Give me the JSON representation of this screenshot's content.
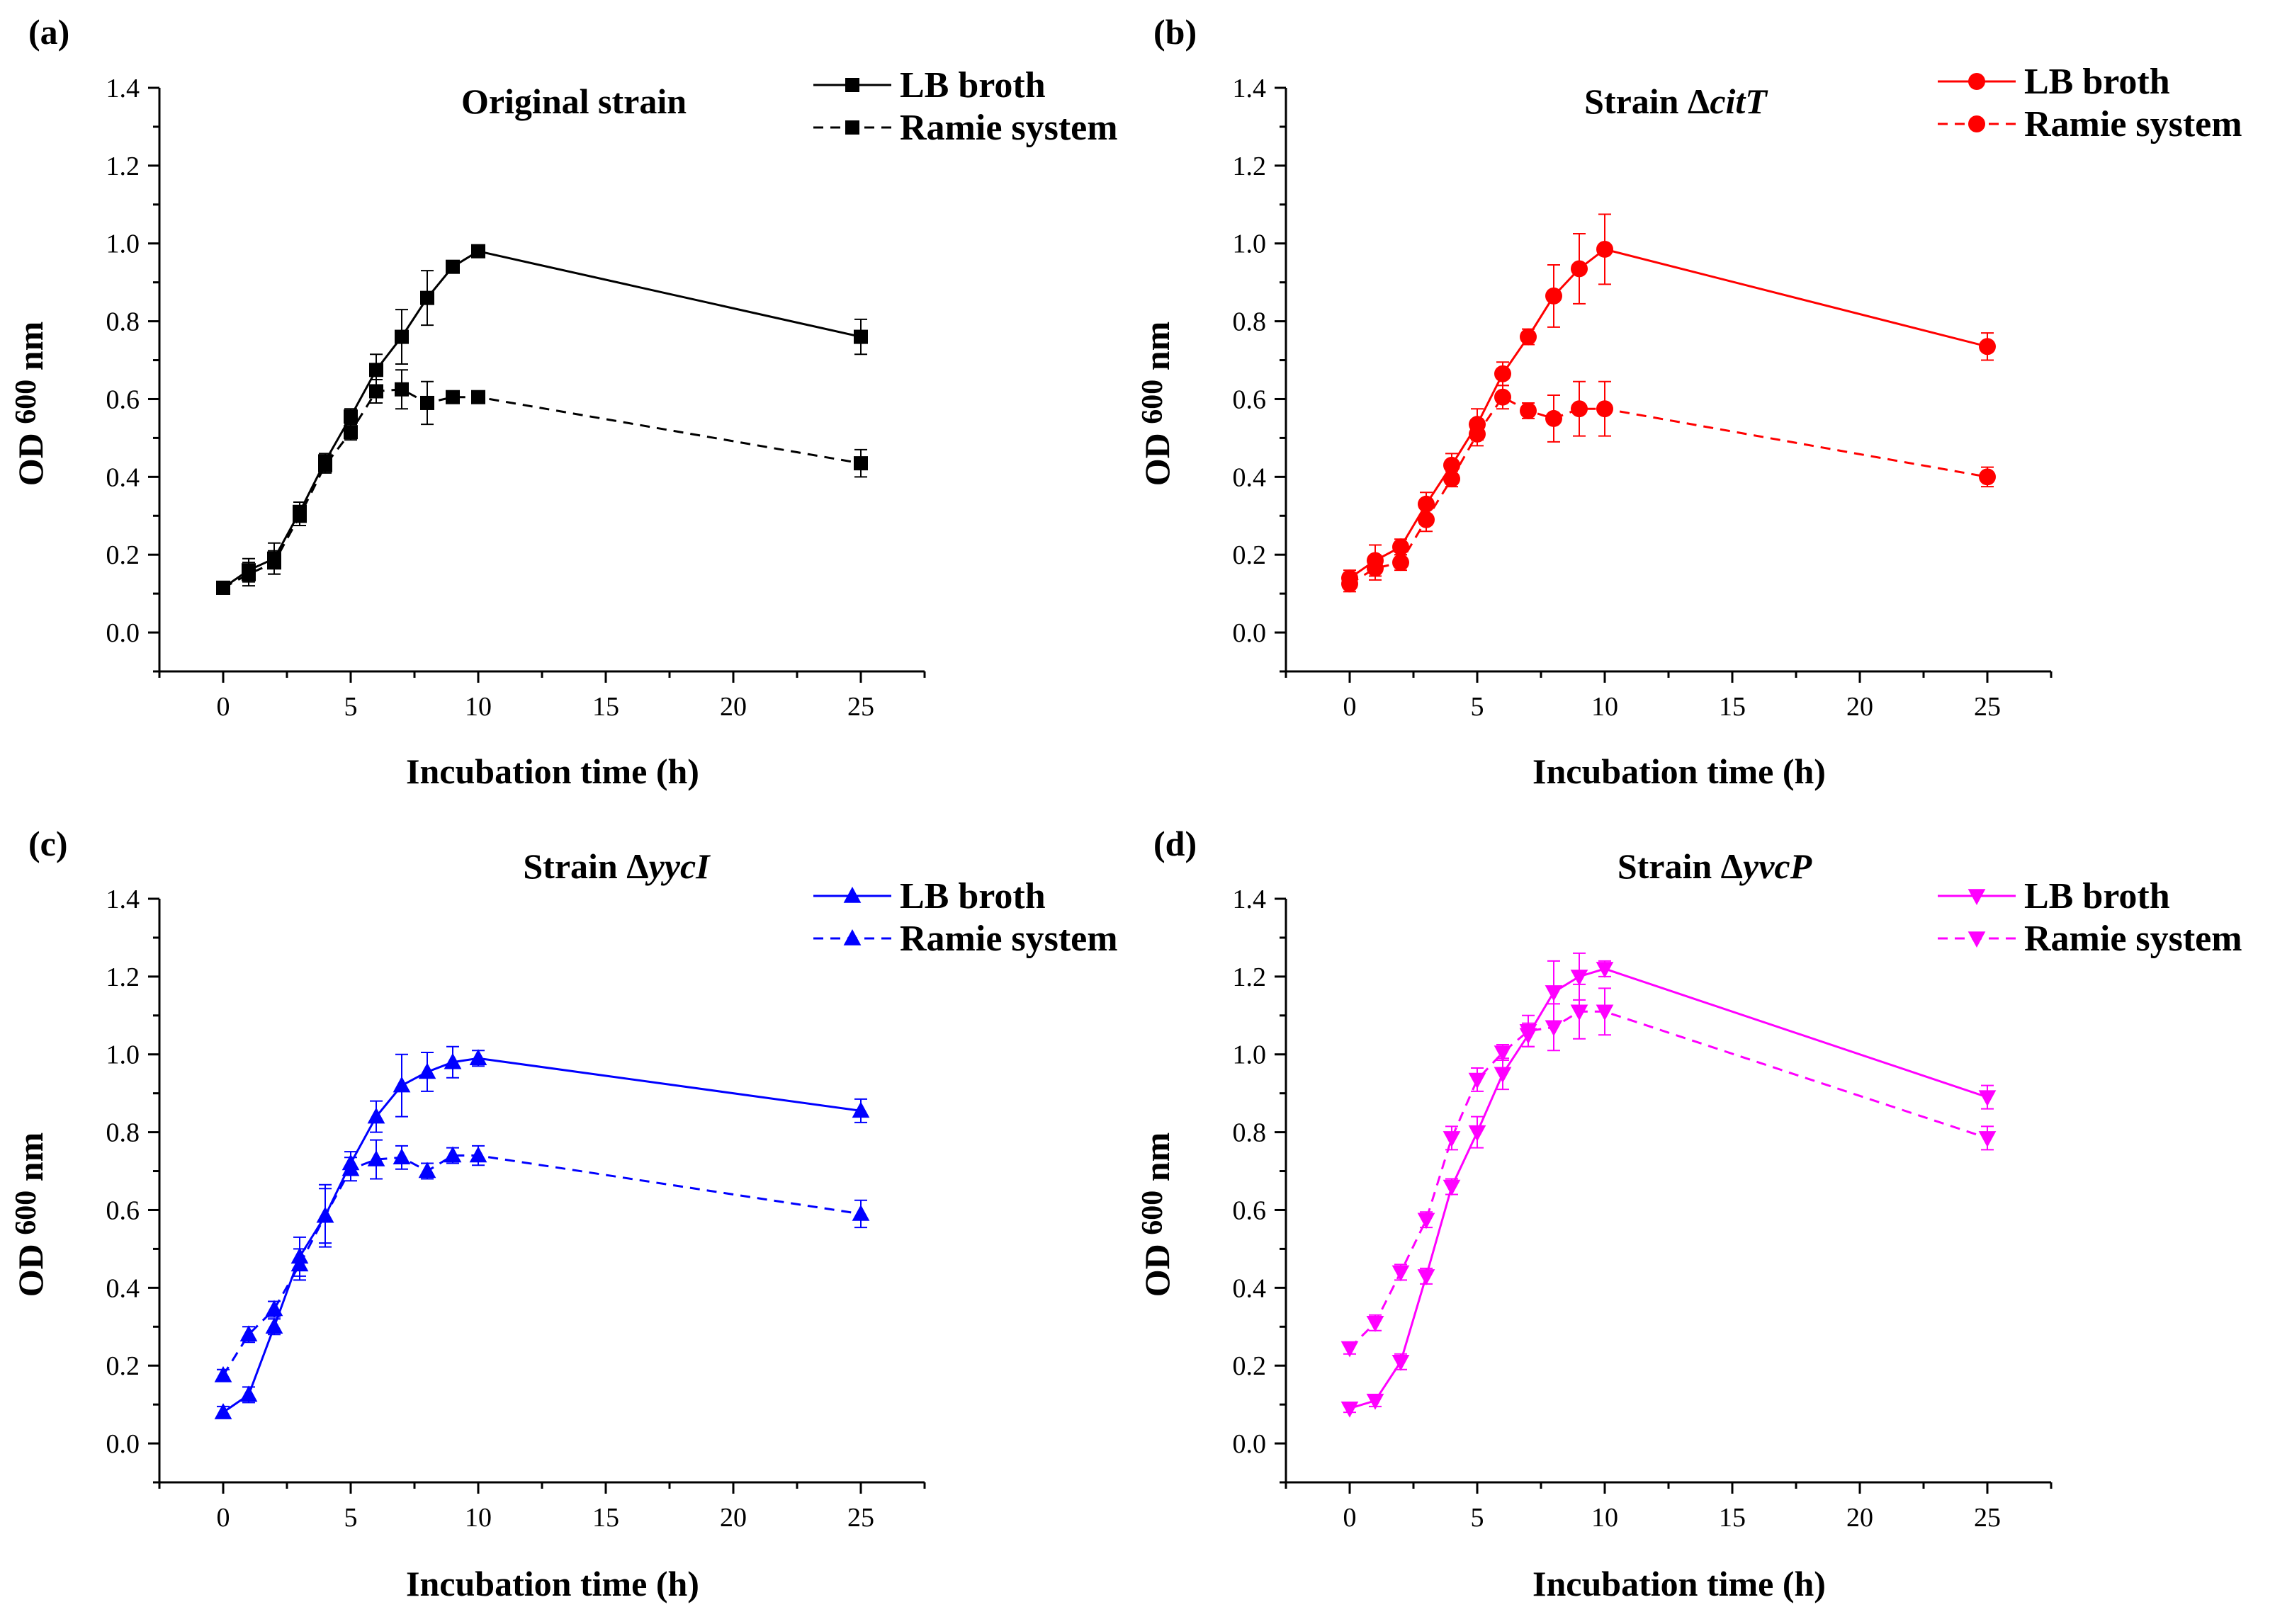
{
  "chart_data": [
    {
      "panel": "(a)",
      "type": "line",
      "title": "Original strain",
      "title_prefix": "",
      "title_gene": "",
      "color": "#000000",
      "marker": "square",
      "xlabel": "Incubation time (h)",
      "ylabel": "OD 600 nm",
      "ylabel_parts": [
        "OD ",
        "600",
        " nm"
      ],
      "xlim": [
        -2.5,
        27.5
      ],
      "ylim": [
        -0.1,
        1.4
      ],
      "xticks": [
        0,
        5,
        10,
        15,
        20,
        25
      ],
      "yticks": [
        0.0,
        0.2,
        0.4,
        0.6,
        0.8,
        1.0,
        1.2,
        1.4
      ],
      "ytick_labels": [
        "0.0",
        "0.2",
        "0.4",
        "0.6",
        "0.8",
        "1.0",
        "1.2",
        "1.4"
      ],
      "x": [
        0,
        1,
        2,
        3,
        4,
        5,
        6,
        7,
        8,
        9,
        10,
        25
      ],
      "legend_position": "top-right",
      "series": [
        {
          "name": "LB broth",
          "line": "solid",
          "values": [
            0.115,
            0.16,
            0.19,
            0.31,
            0.44,
            0.555,
            0.675,
            0.76,
            0.86,
            0.94,
            0.98,
            0.76
          ],
          "errors": [
            0.01,
            0.03,
            0.04,
            0.025,
            0.02,
            0.02,
            0.04,
            0.07,
            0.07,
            0.01,
            0.01,
            0.045
          ]
        },
        {
          "name": "Ramie system",
          "line": "dashed",
          "values": [
            0.115,
            0.15,
            0.18,
            0.3,
            0.43,
            0.515,
            0.62,
            0.625,
            0.59,
            0.605,
            0.605,
            0.435
          ],
          "errors": [
            0.01,
            0.03,
            0.03,
            0.025,
            0.02,
            0.02,
            0.03,
            0.05,
            0.055,
            0.01,
            0.01,
            0.035
          ]
        }
      ]
    },
    {
      "panel": "(b)",
      "type": "line",
      "title": "",
      "title_prefix": "Strain Δ",
      "title_gene": "citT",
      "color": "#ff0000",
      "marker": "circle",
      "xlabel": "Incubation time (h)",
      "ylabel": "OD 600 nm",
      "ylabel_parts": [
        "OD ",
        "600",
        " nm"
      ],
      "xlim": [
        -2.5,
        27.5
      ],
      "ylim": [
        -0.1,
        1.4
      ],
      "xticks": [
        0,
        5,
        10,
        15,
        20,
        25
      ],
      "yticks": [
        0.0,
        0.2,
        0.4,
        0.6,
        0.8,
        1.0,
        1.2,
        1.4
      ],
      "ytick_labels": [
        "0.0",
        "0.2",
        "0.4",
        "0.6",
        "0.8",
        "1.0",
        "1.2",
        "1.4"
      ],
      "x": [
        0,
        1,
        2,
        3,
        4,
        5,
        6,
        7,
        8,
        9,
        10,
        25
      ],
      "legend_position": "top-right",
      "series": [
        {
          "name": "LB broth",
          "line": "solid",
          "values": [
            0.14,
            0.185,
            0.22,
            0.33,
            0.43,
            0.535,
            0.665,
            0.76,
            0.865,
            0.935,
            0.985,
            0.735
          ],
          "errors": [
            0.02,
            0.04,
            0.02,
            0.03,
            0.03,
            0.04,
            0.03,
            0.02,
            0.08,
            0.09,
            0.09,
            0.035
          ]
        },
        {
          "name": "Ramie system",
          "line": "dashed",
          "values": [
            0.125,
            0.165,
            0.18,
            0.29,
            0.395,
            0.51,
            0.605,
            0.57,
            0.55,
            0.575,
            0.575,
            0.4
          ],
          "errors": [
            0.02,
            0.03,
            0.02,
            0.03,
            0.02,
            0.03,
            0.03,
            0.02,
            0.06,
            0.07,
            0.07,
            0.025
          ]
        }
      ]
    },
    {
      "panel": "(c)",
      "type": "line",
      "title": "",
      "title_prefix": "Strain Δ",
      "title_gene": "yycI",
      "color": "#0000ff",
      "marker": "triangle-up",
      "xlabel": "Incubation time (h)",
      "ylabel": "OD 600 nm",
      "ylabel_parts": [
        "OD ",
        "600",
        " nm"
      ],
      "xlim": [
        -2.5,
        27.5
      ],
      "ylim": [
        -0.1,
        1.4
      ],
      "xticks": [
        0,
        5,
        10,
        15,
        20,
        25
      ],
      "yticks": [
        0.0,
        0.2,
        0.4,
        0.6,
        0.8,
        1.0,
        1.2,
        1.4
      ],
      "ytick_labels": [
        "0.0",
        "0.2",
        "0.4",
        "0.6",
        "0.8",
        "1.0",
        "1.2",
        "1.4"
      ],
      "x": [
        0,
        1,
        2,
        3,
        4,
        5,
        6,
        7,
        8,
        9,
        10,
        25
      ],
      "legend_position": "top-right",
      "series": [
        {
          "name": "LB broth",
          "line": "solid",
          "values": [
            0.08,
            0.125,
            0.3,
            0.48,
            0.585,
            0.72,
            0.84,
            0.92,
            0.955,
            0.98,
            0.99,
            0.855
          ],
          "errors": [
            0.015,
            0.02,
            0.02,
            0.05,
            0.07,
            0.03,
            0.04,
            0.08,
            0.05,
            0.04,
            0.02,
            0.03
          ]
        },
        {
          "name": "Ramie system",
          "line": "dashed",
          "values": [
            0.175,
            0.28,
            0.345,
            0.46,
            0.585,
            0.705,
            0.73,
            0.735,
            0.7,
            0.74,
            0.74,
            0.59
          ],
          "errors": [
            0.015,
            0.02,
            0.02,
            0.04,
            0.08,
            0.03,
            0.05,
            0.03,
            0.02,
            0.02,
            0.025,
            0.035
          ]
        }
      ]
    },
    {
      "panel": "(d)",
      "type": "line",
      "title": "",
      "title_prefix": "Strain Δ",
      "title_gene": "yvcP",
      "color": "#ff00ff",
      "marker": "triangle-down",
      "xlabel": "Incubation time (h)",
      "ylabel": "OD 600 nm",
      "ylabel_parts": [
        "OD ",
        "600",
        " nm"
      ],
      "xlim": [
        -2.5,
        27.5
      ],
      "ylim": [
        -0.1,
        1.4
      ],
      "xticks": [
        0,
        5,
        10,
        15,
        20,
        25
      ],
      "yticks": [
        0.0,
        0.2,
        0.4,
        0.6,
        0.8,
        1.0,
        1.2,
        1.4
      ],
      "ytick_labels": [
        "0.0",
        "0.2",
        "0.4",
        "0.6",
        "0.8",
        "1.0",
        "1.2",
        "1.4"
      ],
      "x": [
        0,
        1,
        2,
        3,
        4,
        5,
        6,
        7,
        8,
        9,
        10,
        25
      ],
      "legend_position": "top-right",
      "series": [
        {
          "name": "LB broth",
          "line": "solid",
          "values": [
            0.09,
            0.11,
            0.21,
            0.43,
            0.66,
            0.8,
            0.95,
            1.05,
            1.16,
            1.2,
            1.22,
            0.89
          ],
          "errors": [
            0.01,
            0.015,
            0.02,
            0.02,
            0.02,
            0.04,
            0.04,
            0.03,
            0.08,
            0.06,
            0.02,
            0.03
          ]
        },
        {
          "name": "Ramie system",
          "line": "dashed",
          "values": [
            0.245,
            0.31,
            0.44,
            0.575,
            0.785,
            0.935,
            1.005,
            1.06,
            1.07,
            1.11,
            1.11,
            0.785
          ],
          "errors": [
            0.015,
            0.02,
            0.02,
            0.02,
            0.03,
            0.03,
            0.02,
            0.04,
            0.06,
            0.07,
            0.06,
            0.03
          ]
        }
      ]
    }
  ]
}
